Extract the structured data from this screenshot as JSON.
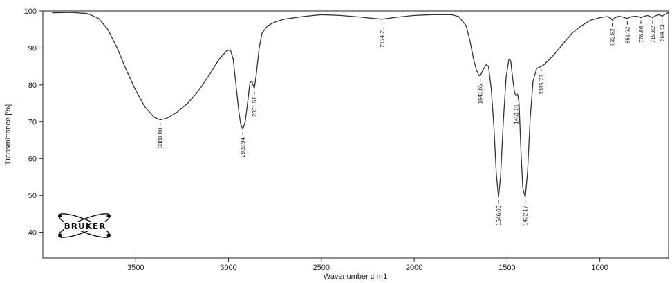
{
  "chart_data": {
    "type": "line",
    "xlabel": "Wavenumber cm-1",
    "ylabel": "Transmittance [%]",
    "xlim": [
      4000,
      630
    ],
    "ylim": [
      33,
      100
    ],
    "x_reversed": true,
    "x_ticks": [
      3500,
      3000,
      2500,
      2000,
      1500,
      1000
    ],
    "y_ticks": [
      40,
      50,
      60,
      70,
      80,
      90,
      100
    ],
    "grid": false,
    "series": [
      {
        "color": "#333333",
        "points": [
          [
            3950,
            99.5
          ],
          [
            3850,
            99.6
          ],
          [
            3760,
            99.3
          ],
          [
            3700,
            98
          ],
          [
            3650,
            95
          ],
          [
            3600,
            90
          ],
          [
            3550,
            84
          ],
          [
            3500,
            78.5
          ],
          [
            3450,
            74
          ],
          [
            3400,
            71.2
          ],
          [
            3368,
            70.5
          ],
          [
            3330,
            71
          ],
          [
            3280,
            72.5
          ],
          [
            3220,
            75
          ],
          [
            3160,
            78.5
          ],
          [
            3100,
            83
          ],
          [
            3050,
            87
          ],
          [
            3010,
            89.2
          ],
          [
            2990,
            89.5
          ],
          [
            2975,
            87
          ],
          [
            2960,
            80
          ],
          [
            2945,
            73
          ],
          [
            2935,
            69.5
          ],
          [
            2923,
            68
          ],
          [
            2910,
            70
          ],
          [
            2895,
            76
          ],
          [
            2885,
            80.5
          ],
          [
            2875,
            81
          ],
          [
            2868,
            80
          ],
          [
            2861,
            79
          ],
          [
            2850,
            83
          ],
          [
            2835,
            90
          ],
          [
            2820,
            94
          ],
          [
            2790,
            96
          ],
          [
            2750,
            97
          ],
          [
            2700,
            97.8
          ],
          [
            2600,
            98.5
          ],
          [
            2500,
            99
          ],
          [
            2400,
            98.8
          ],
          [
            2300,
            98.4
          ],
          [
            2174,
            97.8
          ],
          [
            2100,
            98.3
          ],
          [
            2000,
            98.8
          ],
          [
            1900,
            99
          ],
          [
            1800,
            99
          ],
          [
            1760,
            98.5
          ],
          [
            1720,
            96
          ],
          [
            1700,
            92
          ],
          [
            1680,
            87
          ],
          [
            1665,
            84
          ],
          [
            1650,
            82.5
          ],
          [
            1644,
            82.5
          ],
          [
            1630,
            84
          ],
          [
            1612,
            85.5
          ],
          [
            1600,
            85
          ],
          [
            1585,
            79
          ],
          [
            1570,
            68
          ],
          [
            1558,
            56
          ],
          [
            1546,
            49.5
          ],
          [
            1535,
            55
          ],
          [
            1520,
            70
          ],
          [
            1505,
            82
          ],
          [
            1490,
            87
          ],
          [
            1480,
            86.5
          ],
          [
            1470,
            82
          ],
          [
            1460,
            78
          ],
          [
            1451,
            77
          ],
          [
            1443,
            77.5
          ],
          [
            1435,
            75
          ],
          [
            1425,
            62
          ],
          [
            1415,
            52
          ],
          [
            1402,
            49.5
          ],
          [
            1390,
            56
          ],
          [
            1375,
            71
          ],
          [
            1360,
            81
          ],
          [
            1340,
            84.5
          ],
          [
            1316,
            85
          ],
          [
            1300,
            85.5
          ],
          [
            1250,
            88
          ],
          [
            1200,
            91
          ],
          [
            1150,
            94
          ],
          [
            1100,
            96
          ],
          [
            1050,
            97.5
          ],
          [
            1000,
            98.2
          ],
          [
            960,
            98.5
          ],
          [
            940,
            98
          ],
          [
            933,
            97.5
          ],
          [
            925,
            98
          ],
          [
            900,
            98.6
          ],
          [
            880,
            98.4
          ],
          [
            852,
            98
          ],
          [
            830,
            98.5
          ],
          [
            800,
            98.6
          ],
          [
            779,
            98.2
          ],
          [
            760,
            98.6
          ],
          [
            740,
            98.8
          ],
          [
            716,
            98.2
          ],
          [
            700,
            98.7
          ],
          [
            680,
            99
          ],
          [
            665,
            98.6
          ],
          [
            655,
            98.9
          ],
          [
            630,
            99.6
          ]
        ]
      }
    ],
    "peak_labels": [
      {
        "x": 3368,
        "label": "3368.00"
      },
      {
        "x": 2923,
        "label": "2923.94"
      },
      {
        "x": 2861,
        "label": "2861.51"
      },
      {
        "x": 2174,
        "label": "2174.25"
      },
      {
        "x": 1644,
        "label": "1643.65"
      },
      {
        "x": 1546,
        "label": "1546.03"
      },
      {
        "x": 1451,
        "label": "1451.01"
      },
      {
        "x": 1402,
        "label": "1402.17"
      },
      {
        "x": 1316,
        "label": "1315.78"
      },
      {
        "x": 933,
        "label": "932.82"
      },
      {
        "x": 852,
        "label": "851.92"
      },
      {
        "x": 779,
        "label": "778.86"
      },
      {
        "x": 716,
        "label": "715.82"
      },
      {
        "x": 665,
        "label": "664.63"
      }
    ]
  },
  "logo": {
    "text": "BRUKER",
    "icon": "atom-orbit-icon"
  }
}
